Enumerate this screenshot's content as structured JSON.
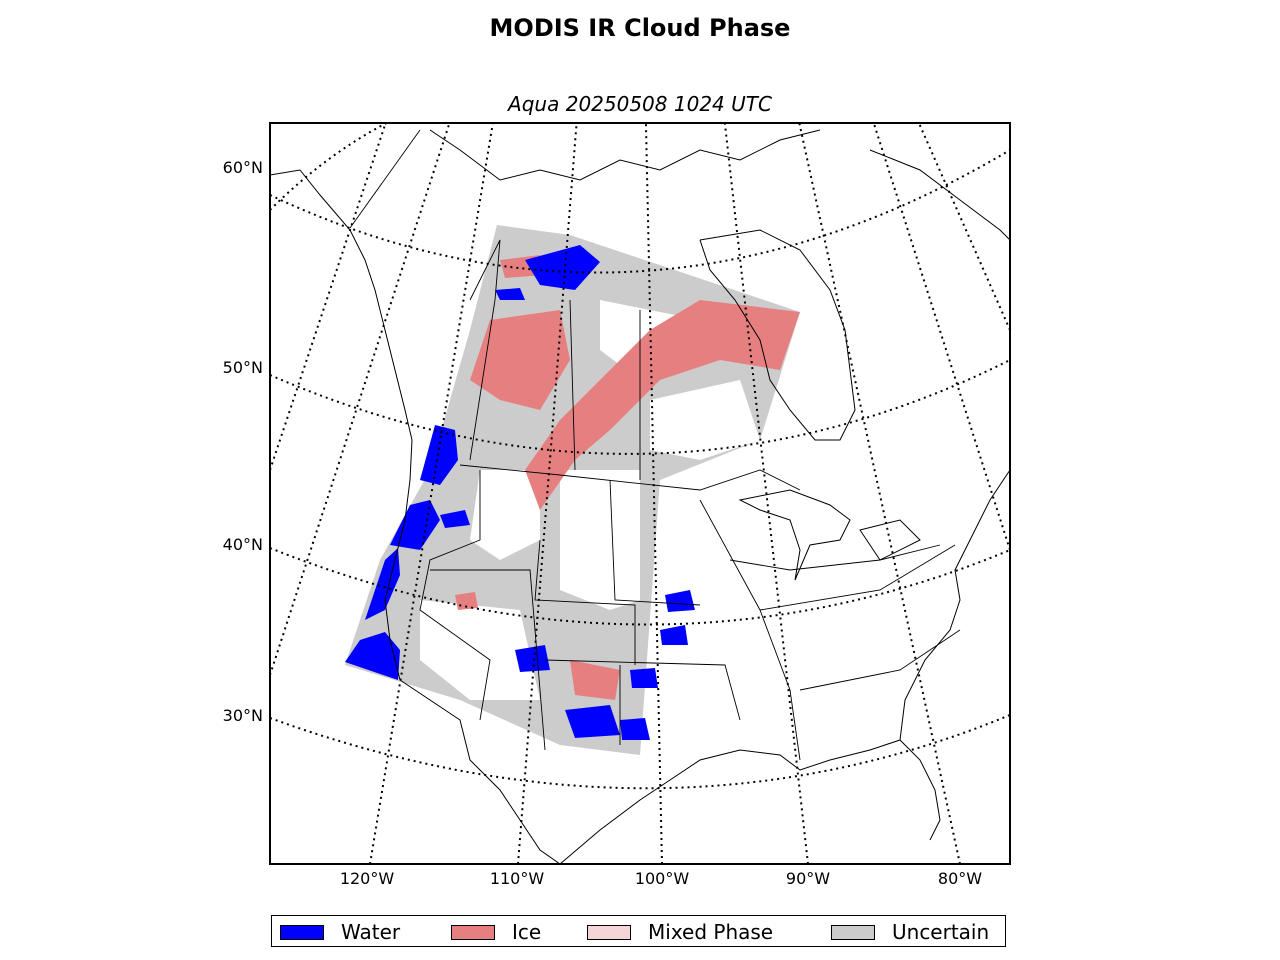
{
  "title": "MODIS IR Cloud Phase",
  "subtitle": "Aqua 20250508 1024 UTC",
  "latitude_labels": [
    "60°N",
    "50°N",
    "40°N",
    "30°N"
  ],
  "longitude_labels": [
    "120°W",
    "110°W",
    "100°W",
    "90°W",
    "80°W"
  ],
  "legend": [
    {
      "label": "Water",
      "color": "#0000ff"
    },
    {
      "label": "Ice",
      "color": "#e68080"
    },
    {
      "label": "Mixed Phase",
      "color": "#f5d5d5"
    },
    {
      "label": "Uncertain",
      "color": "#cccccc"
    }
  ]
}
